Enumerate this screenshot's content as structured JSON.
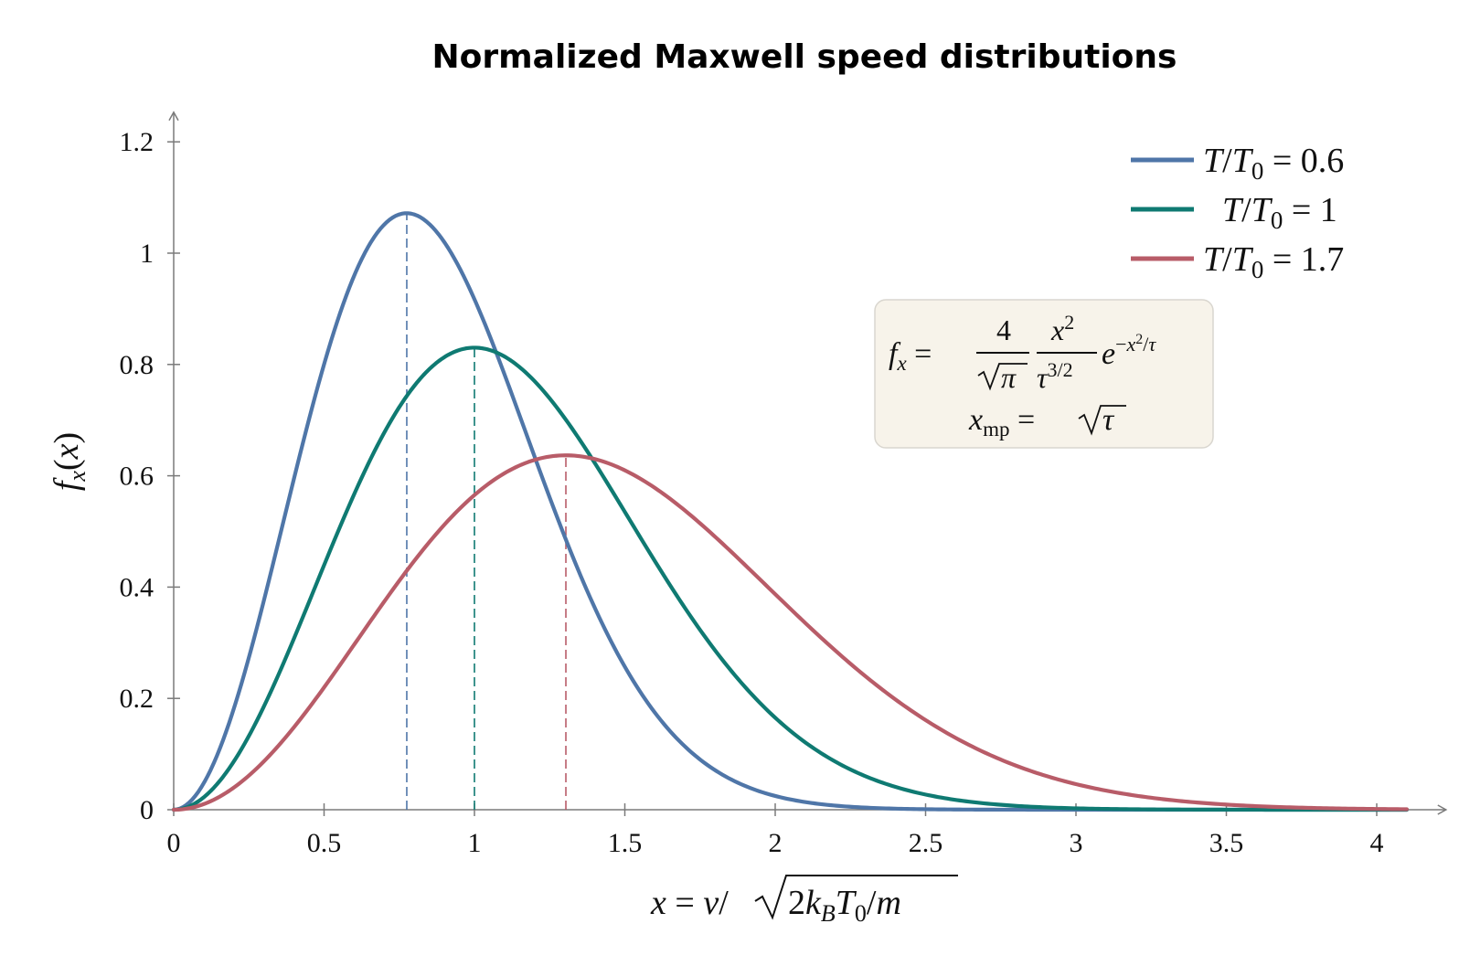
{
  "chart_data": {
    "type": "line",
    "title": "Normalized Maxwell speed distributions",
    "xlabel": "x = v/√(2k_B T_0/m)",
    "ylabel": "f_x(x)",
    "xlim": [
      0,
      4.2
    ],
    "ylim": [
      0,
      1.25
    ],
    "x_ticks": [
      0,
      0.5,
      1,
      1.5,
      2,
      2.5,
      3,
      3.5,
      4
    ],
    "x_tick_labels": [
      "0",
      "0.5",
      "1",
      "1.5",
      "2",
      "2.5",
      "3",
      "3.5",
      "4"
    ],
    "y_ticks": [
      0,
      0.2,
      0.4,
      0.6,
      0.8,
      1,
      1.2
    ],
    "y_tick_labels": [
      "0",
      "0.2",
      "0.4",
      "0.6",
      "0.8",
      "1",
      "1.2"
    ],
    "grid": false,
    "legend_position": "top-right",
    "x_range_plotted": [
      0,
      4.1
    ],
    "series": [
      {
        "name": "T/T0 = 0.6",
        "tau": 0.6,
        "color": "#4f76a8",
        "x": [
          0,
          0.25,
          0.5,
          0.775,
          1.0,
          1.25,
          1.5,
          1.75,
          2.0,
          2.5,
          3.0,
          3.5,
          4.0
        ],
        "y": [
          0,
          0.29,
          0.78,
          1.07,
          0.9,
          0.48,
          0.18,
          0.06,
          0.02,
          0.0,
          0.0,
          0.0,
          0.0
        ],
        "peak_x": 0.775,
        "peak_y": 1.07
      },
      {
        "name": "T/T0 = 1",
        "tau": 1.0,
        "color": "#0f7a72",
        "x": [
          0,
          0.25,
          0.5,
          0.75,
          1.0,
          1.25,
          1.5,
          1.75,
          2.0,
          2.5,
          3.0,
          3.5,
          4.0
        ],
        "y": [
          0,
          0.13,
          0.44,
          0.72,
          0.83,
          0.75,
          0.54,
          0.32,
          0.17,
          0.03,
          0.0,
          0.0,
          0.0
        ],
        "peak_x": 1.0,
        "peak_y": 0.83
      },
      {
        "name": "T/T0 = 1.7",
        "tau": 1.7,
        "color": "#b85c68",
        "x": [
          0,
          0.25,
          0.5,
          0.75,
          1.0,
          1.304,
          1.5,
          1.75,
          2.0,
          2.5,
          3.0,
          3.5,
          4.0
        ],
        "y": [
          0,
          0.06,
          0.22,
          0.41,
          0.57,
          0.64,
          0.62,
          0.55,
          0.42,
          0.17,
          0.05,
          0.01,
          0.0
        ],
        "peak_x": 1.304,
        "peak_y": 0.64
      }
    ],
    "annotation": {
      "formula": "f_x = 4/√π · x²/τ^(3/2) · e^(−x²/τ)",
      "formula_mp": "x_mp = √τ"
    }
  }
}
